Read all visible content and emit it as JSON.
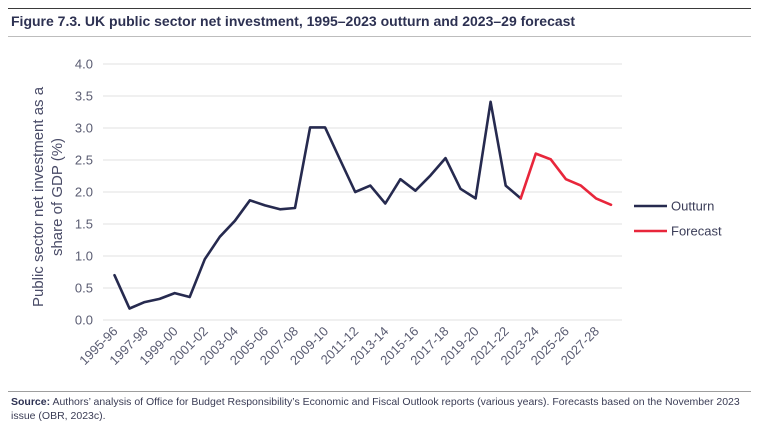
{
  "figure": {
    "title": "Figure 7.3. UK public sector net investment, 1995–2023 outturn and 2023–29 forecast"
  },
  "source": {
    "label": "Source:",
    "text": "Authors’ analysis of Office for Budget Responsibility’s Economic and Fiscal Outlook reports (various years). Forecasts based on the November 2023 issue (OBR, 2023c)."
  },
  "colors": {
    "outturn": "#262a4f",
    "forecast": "#e8263b",
    "grid": "#e2e2e2"
  },
  "chart_data": {
    "type": "line",
    "ylabel": "Public sector net investment as a share of GDP (%)",
    "ylabel_lines": [
      "Public sector net investment as a",
      "share of GDP (%)"
    ],
    "ylim": [
      0,
      4
    ],
    "yticks": [
      "0.0",
      "0.5",
      "1.0",
      "1.5",
      "2.0",
      "2.5",
      "3.0",
      "3.5",
      "4.0"
    ],
    "grid": "horizontal",
    "legend_position": "right",
    "categories": [
      "1995-96",
      "1996-97",
      "1997-98",
      "1998-99",
      "1999-00",
      "2000-01",
      "2001-02",
      "2002-03",
      "2003-04",
      "2004-05",
      "2005-06",
      "2006-07",
      "2007-08",
      "2008-09",
      "2009-10",
      "2010-11",
      "2011-12",
      "2012-13",
      "2013-14",
      "2014-15",
      "2015-16",
      "2016-17",
      "2017-18",
      "2018-19",
      "2019-20",
      "2020-21",
      "2021-22",
      "2022-23",
      "2023-24",
      "2024-25",
      "2025-26",
      "2026-27",
      "2027-28",
      "2028-29"
    ],
    "xtick_labels": [
      "1995-96",
      "1997-98",
      "1999-00",
      "2001-02",
      "2003-04",
      "2005-06",
      "2007-08",
      "2009-10",
      "2011-12",
      "2013-14",
      "2015-16",
      "2017-18",
      "2019-20",
      "2021-22",
      "2023-24",
      "2025-26",
      "2027-28"
    ],
    "series": [
      {
        "name": "Outturn",
        "values": [
          0.7,
          0.18,
          0.28,
          0.33,
          0.42,
          0.36,
          0.95,
          1.3,
          1.55,
          1.87,
          1.79,
          1.73,
          1.75,
          3.01,
          3.01,
          2.5,
          2.0,
          2.1,
          1.82,
          2.2,
          2.02,
          2.26,
          2.53,
          2.05,
          1.9,
          3.41,
          2.1,
          1.9,
          null,
          null,
          null,
          null,
          null,
          null
        ]
      },
      {
        "name": "Forecast",
        "values": [
          null,
          null,
          null,
          null,
          null,
          null,
          null,
          null,
          null,
          null,
          null,
          null,
          null,
          null,
          null,
          null,
          null,
          null,
          null,
          null,
          null,
          null,
          null,
          null,
          null,
          null,
          null,
          1.9,
          2.6,
          2.51,
          2.2,
          2.1,
          1.9,
          1.8
        ]
      }
    ]
  }
}
